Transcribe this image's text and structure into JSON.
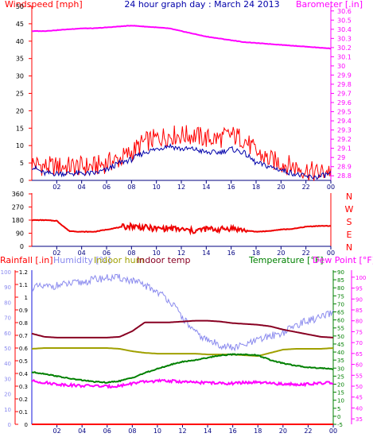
{
  "chart_data": [
    {
      "type": "line",
      "title": "24 hour graph day : March 24 2013",
      "left_axis_label": "Windspeed [mph]",
      "right_axis_label": "Barometer [.in]",
      "x_ticks": [
        "02",
        "04",
        "06",
        "08",
        "10",
        "12",
        "14",
        "16",
        "18",
        "20",
        "22",
        "00"
      ],
      "left_ticks": [
        "0",
        "5",
        "10",
        "15",
        "20",
        "25",
        "30",
        "35",
        "40",
        "45",
        "50"
      ],
      "right_ticks": [
        "28.8",
        "28.9",
        "29",
        "29.1",
        "29.2",
        "29.3",
        "29.4",
        "29.5",
        "29.6",
        "29.7",
        "29.8",
        "29.9",
        "30",
        "30.1",
        "30.2",
        "30.3",
        "30.4",
        "30.5",
        "30.6"
      ],
      "ylim_left": [
        0,
        50
      ],
      "ylim_right": [
        28.75,
        30.65
      ],
      "x": [
        0,
        1,
        2,
        3,
        4,
        5,
        6,
        7,
        8,
        9,
        10,
        11,
        12,
        13,
        14,
        15,
        16,
        17,
        18,
        19,
        20,
        21,
        22,
        23,
        24
      ],
      "series": [
        {
          "color": "#ff0000",
          "axis": "left",
          "values": [
            5,
            4,
            4,
            4,
            4,
            4,
            5,
            6,
            8,
            11,
            12,
            13,
            13,
            13,
            12,
            12,
            13,
            12,
            8,
            6,
            5,
            4,
            3,
            2,
            3
          ]
        },
        {
          "color": "#0000aa",
          "axis": "left",
          "values": [
            4,
            2,
            2,
            2,
            2,
            2,
            3,
            5,
            6,
            8,
            9,
            10,
            9,
            9,
            8,
            8,
            9,
            8,
            5,
            4,
            3,
            2,
            1,
            1,
            2
          ]
        },
        {
          "color": "#ff00ff",
          "axis": "right",
          "values": [
            30.38,
            30.38,
            30.39,
            30.4,
            30.41,
            30.41,
            30.42,
            30.43,
            30.44,
            30.43,
            30.42,
            30.41,
            30.38,
            30.35,
            30.32,
            30.3,
            30.28,
            30.26,
            30.25,
            30.24,
            30.23,
            30.22,
            30.21,
            30.2,
            30.19
          ]
        }
      ]
    },
    {
      "type": "line",
      "left_ticks": [
        "0",
        "90",
        "180",
        "270",
        "360"
      ],
      "right_labels": [
        "N",
        "W",
        "S",
        "E",
        "N"
      ],
      "x_ticks": [
        "02",
        "04",
        "06",
        "08",
        "10",
        "12",
        "14",
        "16",
        "18",
        "20",
        "22",
        "00"
      ],
      "ylim": [
        0,
        360
      ],
      "x": [
        0,
        1,
        2,
        3,
        4,
        5,
        6,
        7,
        8,
        9,
        10,
        11,
        12,
        13,
        14,
        15,
        16,
        17,
        18,
        19,
        20,
        21,
        22,
        23,
        24
      ],
      "series": [
        {
          "color": "#ee0000",
          "values": [
            180,
            180,
            175,
            105,
            100,
            100,
            115,
            130,
            140,
            130,
            120,
            125,
            115,
            105,
            120,
            115,
            125,
            110,
            100,
            105,
            115,
            120,
            135,
            140,
            140
          ]
        }
      ]
    },
    {
      "type": "line",
      "legend": [
        {
          "label": "Rainfall [.in]",
          "color": "#ff0000"
        },
        {
          "label": "Humidity [%]",
          "color": "#8a8aee"
        },
        {
          "label": "Indoor hum",
          "color": "#a0a000"
        },
        {
          "label": "Indoor temp",
          "color": "#880022"
        },
        {
          "label": "Temperature [°F]",
          "color": "#008000"
        },
        {
          "label": "Dew Point [°F]",
          "color": "#ff00ff"
        }
      ],
      "x_ticks": [
        "02",
        "04",
        "06",
        "08",
        "10",
        "12",
        "14",
        "16",
        "18",
        "20",
        "22",
        "00"
      ],
      "rain_ticks": [
        "0",
        "0.1",
        "0.2",
        "0.3",
        "0.4",
        "0.5",
        "0.6",
        "0.7",
        "0.8",
        "0.9",
        "1",
        "1.1",
        "1.2"
      ],
      "humidity_ticks": [
        "0",
        "10",
        "20",
        "30",
        "40",
        "50",
        "60",
        "70",
        "80",
        "90",
        "100"
      ],
      "temp_ticks": [
        "-5",
        "0",
        "5",
        "10",
        "15",
        "20",
        "25",
        "30",
        "35",
        "40",
        "45",
        "50",
        "55",
        "60",
        "65",
        "70",
        "75",
        "80",
        "85",
        "90"
      ],
      "dew_ticks": [
        "35",
        "40",
        "45",
        "50",
        "55",
        "60",
        "65",
        "70",
        "75",
        "80",
        "85",
        "90",
        "95",
        "100"
      ],
      "x": [
        0,
        1,
        2,
        3,
        4,
        5,
        6,
        7,
        8,
        9,
        10,
        11,
        12,
        13,
        14,
        15,
        16,
        17,
        18,
        19,
        20,
        21,
        22,
        23,
        24
      ],
      "series": [
        {
          "name": "Humidity [%]",
          "color": "#8a8aee",
          "values": [
            90,
            90,
            91,
            92,
            93,
            95,
            96,
            96,
            94,
            91,
            87,
            81,
            70,
            60,
            55,
            52,
            50,
            52,
            55,
            58,
            60,
            65,
            68,
            70,
            73
          ]
        },
        {
          "name": "Indoor temp",
          "color": "#880022",
          "values": [
            51.5,
            49.5,
            49,
            49,
            49,
            49,
            49,
            49.5,
            53,
            58.5,
            58.5,
            58.5,
            59,
            59.5,
            59.5,
            59,
            58,
            57.5,
            57,
            56,
            54,
            52.5,
            51,
            49.5,
            49
          ]
        },
        {
          "name": "Indoor hum",
          "color": "#a0a000",
          "values": [
            42,
            42.5,
            42.5,
            42.5,
            42.5,
            42.5,
            42.5,
            42,
            40.5,
            39.5,
            39,
            39,
            39,
            39,
            38.5,
            38.5,
            38.5,
            38,
            37.5,
            39.5,
            41.5,
            42,
            42,
            42,
            42.5
          ]
        },
        {
          "name": "Temperature [°F]",
          "color": "#008000",
          "values": [
            27.5,
            26.5,
            25,
            23.5,
            22.5,
            21.5,
            21,
            22,
            24,
            27,
            29.5,
            32,
            34,
            35,
            36.5,
            38,
            38.5,
            38.5,
            38,
            35,
            33,
            31.5,
            30.5,
            30,
            29.5
          ]
        },
        {
          "name": "Dew Point [°F]",
          "color": "#ff00ff",
          "values": [
            22,
            21,
            20,
            19.5,
            19,
            19,
            18.5,
            19,
            20.5,
            21.5,
            22,
            22,
            21.5,
            21,
            21,
            20.5,
            20.5,
            21,
            21,
            20.5,
            20,
            20,
            20,
            20.5,
            21
          ]
        },
        {
          "name": "Rainfall [.in]",
          "color": "#ff0000",
          "values": [
            0,
            0,
            0,
            0,
            0,
            0,
            0,
            0,
            0,
            0,
            0,
            0,
            0,
            0,
            0,
            0,
            0,
            0,
            0,
            0,
            0,
            0,
            0,
            0,
            0
          ]
        }
      ]
    }
  ]
}
